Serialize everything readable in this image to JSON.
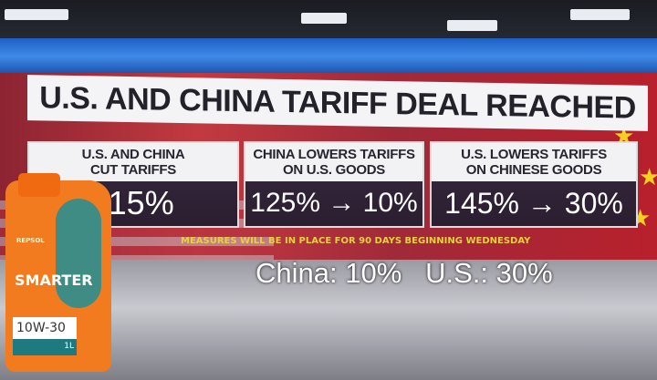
{
  "graphic": {
    "title": "U.S. AND CHINA TARIFF DEAL REACHED",
    "panels": [
      {
        "heading_line1": "U.S. AND CHINA",
        "heading_line2": "CUT TARIFFS",
        "value": "115%"
      },
      {
        "heading_line1": "CHINA LOWERS TARIFFS",
        "heading_line2": "ON U.S. GOODS",
        "value": "125% → 10%"
      },
      {
        "heading_line1": "U.S. LOWERS TARIFFS",
        "heading_line2": "ON CHINESE GOODS",
        "value": "145% → 30%"
      }
    ],
    "caption": "MEASURES WILL BE IN PLACE FOR 90 DAYS BEGINNING WEDNESDAY"
  },
  "overlay": {
    "text": "China: 10%   U.S.: 30%"
  },
  "ad": {
    "brand": "REPSOL",
    "product": "SMARTER",
    "grade": "10W-30",
    "volume": "1L"
  },
  "colors": {
    "caption": "#e7d23a",
    "band": "#3f8ae8",
    "bottle": "#f27a1f"
  }
}
